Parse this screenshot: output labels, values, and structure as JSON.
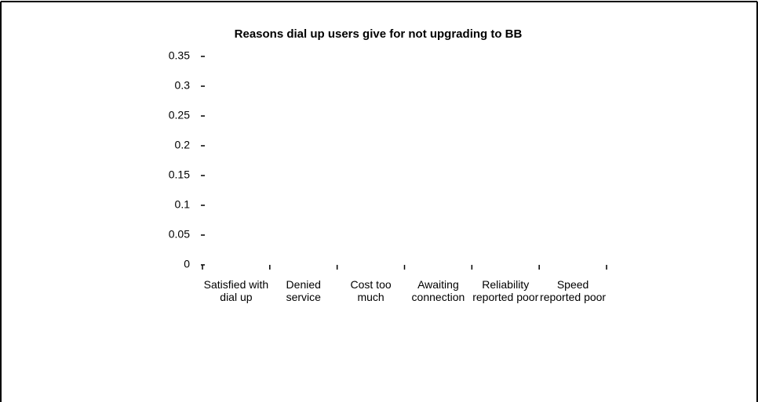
{
  "chart_data": {
    "type": "bar",
    "title": "Reasons dial up users give for not upgrading to BB",
    "categories": [
      "Satisfied with dial up",
      "Denied service",
      "Cost too much",
      "Awaiting connection",
      "Reliability reported poor",
      "Speed reported poor"
    ],
    "values": [
      0,
      0,
      0,
      0,
      0,
      0
    ],
    "color": "#000080",
    "ylim": [
      0,
      0.35
    ],
    "yticks": [
      0,
      0.05,
      0.1,
      0.15,
      0.2,
      0.25,
      0.3,
      0.35
    ],
    "grid": false
  }
}
